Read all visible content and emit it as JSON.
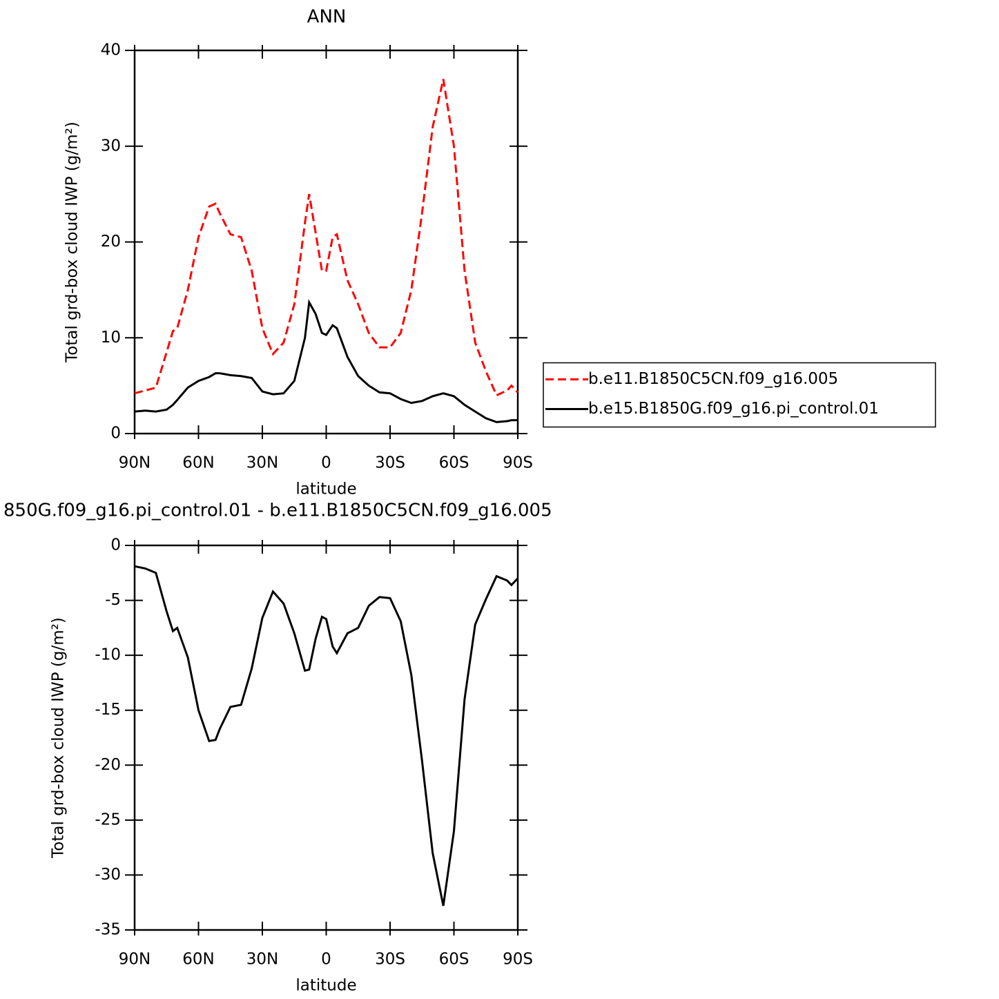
{
  "chart_data": [
    {
      "type": "line",
      "title": "ANN",
      "ylabel": "Total grd-box cloud IWP (g/m²)",
      "xlabel": "latitude",
      "x": [
        90,
        85,
        80,
        75,
        72,
        70,
        65,
        60,
        55,
        52,
        50,
        45,
        40,
        35,
        30,
        25,
        20,
        15,
        10,
        8,
        5,
        2,
        0,
        -3,
        -5,
        -10,
        -15,
        -20,
        -25,
        -30,
        -35,
        -40,
        -45,
        -50,
        -55,
        -60,
        -65,
        -70,
        -75,
        -80,
        -85,
        -87,
        -90
      ],
      "xlim": [
        90,
        -90
      ],
      "xticks": [
        {
          "value": 90,
          "label": "90N"
        },
        {
          "value": 60,
          "label": "60N"
        },
        {
          "value": 30,
          "label": "30N"
        },
        0,
        {
          "value": -30,
          "label": "30S"
        },
        {
          "value": -60,
          "label": "60S"
        },
        {
          "value": -90,
          "label": "90S"
        }
      ],
      "ylim": [
        0,
        40
      ],
      "yticks": [
        0,
        10,
        20,
        30,
        40
      ],
      "legend": "right",
      "series": [
        {
          "name": "b.e11.B1850C5CN.f09_g16.005",
          "color": "#ff0000",
          "linestyle": "dashed",
          "values": [
            4.2,
            4.5,
            4.8,
            8.5,
            10.7,
            11,
            15,
            20.5,
            23.7,
            24,
            23,
            20.8,
            20.5,
            17,
            11,
            8.3,
            9.5,
            13.5,
            22,
            25,
            21,
            17,
            17,
            20.5,
            20.8,
            16,
            13.5,
            10.5,
            9,
            9,
            10.5,
            15,
            23,
            32,
            37,
            30,
            17,
            9.5,
            6.5,
            4,
            4.5,
            5,
            4.3
          ]
        },
        {
          "name": "b.e15.B1850G.f09_g16.pi_control.01",
          "color": "#000000",
          "linestyle": "solid",
          "values": [
            2.3,
            2.4,
            2.3,
            2.5,
            3.0,
            3.5,
            4.8,
            5.5,
            5.9,
            6.3,
            6.3,
            6.1,
            6.0,
            5.8,
            4.4,
            4.1,
            4.2,
            5.5,
            10,
            13.7,
            12.5,
            10.5,
            10.3,
            11.3,
            11,
            8,
            6,
            5,
            4.3,
            4.2,
            3.6,
            3.2,
            3.4,
            3.9,
            4.2,
            3.9,
            3.0,
            2.3,
            1.6,
            1.2,
            1.3,
            1.4,
            1.4
          ]
        }
      ]
    },
    {
      "type": "line",
      "title": "850G.f09_g16.pi_control.01 - b.e11.B1850C5CN.f09_g16.005",
      "ylabel": "Total grd-box cloud IWP (g/m²)",
      "xlabel": "latitude",
      "x": [
        90,
        85,
        80,
        75,
        72,
        70,
        65,
        60,
        55,
        52,
        50,
        45,
        40,
        35,
        30,
        25,
        20,
        15,
        10,
        8,
        5,
        2,
        0,
        -3,
        -5,
        -10,
        -15,
        -20,
        -25,
        -30,
        -35,
        -40,
        -45,
        -50,
        -55,
        -60,
        -65,
        -70,
        -75,
        -80,
        -85,
        -87,
        -90
      ],
      "xlim": [
        90,
        -90
      ],
      "xticks": [
        {
          "value": 90,
          "label": "90N"
        },
        {
          "value": 60,
          "label": "60N"
        },
        {
          "value": 30,
          "label": "30N"
        },
        0,
        {
          "value": -30,
          "label": "30S"
        },
        {
          "value": -60,
          "label": "60S"
        },
        {
          "value": -90,
          "label": "90S"
        }
      ],
      "ylim": [
        -35,
        0
      ],
      "yticks": [
        0,
        -5,
        -10,
        -15,
        -20,
        -25,
        -30,
        -35
      ],
      "series": [
        {
          "color": "#000000",
          "linestyle": "solid",
          "values": [
            -1.9,
            -2.1,
            -2.5,
            -6,
            -7.8,
            -7.5,
            -10.2,
            -15,
            -17.8,
            -17.7,
            -16.7,
            -14.7,
            -14.5,
            -11.2,
            -6.6,
            -4.2,
            -5.3,
            -8,
            -11.4,
            -11.3,
            -8.5,
            -6.5,
            -6.7,
            -9.2,
            -9.8,
            -8,
            -7.5,
            -5.5,
            -4.7,
            -4.8,
            -6.9,
            -11.8,
            -19.6,
            -28,
            -32.8,
            -26,
            -14,
            -7.2,
            -4.9,
            -2.8,
            -3.2,
            -3.6,
            -3.0
          ]
        }
      ]
    }
  ]
}
